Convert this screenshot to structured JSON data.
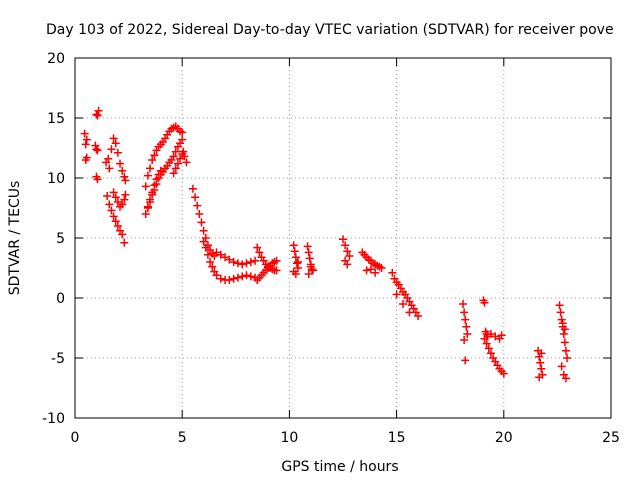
{
  "chart_data": {
    "type": "scatter",
    "title": "Day 103 of 2022, Sidereal Day-to-day VTEC variation (SDTVAR) for receiver pove",
    "xlabel": "GPS time / hours",
    "ylabel": "SDTVAR / TECUs",
    "xlim": [
      0,
      25
    ],
    "ylim": [
      -10,
      20
    ],
    "xticks": [
      0,
      5,
      10,
      15,
      20,
      25
    ],
    "yticks": [
      -10,
      -5,
      0,
      5,
      10,
      15,
      20
    ],
    "xtick_labels": [
      "0",
      "5",
      "10",
      "15",
      "20",
      "25"
    ],
    "ytick_labels": [
      "-10",
      "-5",
      "0",
      "5",
      "10",
      "15",
      "20"
    ],
    "grid": true,
    "marker": "+",
    "series": [
      {
        "name": "SDTVAR",
        "color": "#ff0000",
        "x": [
          0.45,
          0.5,
          0.5,
          0.55,
          0.55,
          0.95,
          1.0,
          1.0,
          1.05,
          1.05,
          1.1,
          1.0,
          1.05,
          1.45,
          1.55,
          1.6,
          1.7,
          1.8,
          1.9,
          2.0,
          2.1,
          2.2,
          2.3,
          2.35,
          1.5,
          1.6,
          1.7,
          1.8,
          1.9,
          2.0,
          2.1,
          2.2,
          2.3,
          1.8,
          1.9,
          2.0,
          2.1,
          2.2,
          2.3,
          2.35,
          3.3,
          3.4,
          3.5,
          3.6,
          3.7,
          3.8,
          3.9,
          4.0,
          4.1,
          4.2,
          4.3,
          4.4,
          4.5,
          4.6,
          4.7,
          4.8,
          4.9,
          5.0,
          3.4,
          3.5,
          3.6,
          3.7,
          3.8,
          3.9,
          4.0,
          4.1,
          4.2,
          4.3,
          4.4,
          4.5,
          4.6,
          4.7,
          4.8,
          4.9,
          5.0,
          3.3,
          3.4,
          3.5,
          3.6,
          3.7,
          3.8,
          3.9,
          4.0,
          4.6,
          4.7,
          4.8,
          4.9,
          5.0,
          5.05,
          5.1,
          5.2,
          5.5,
          5.6,
          5.7,
          5.8,
          5.9,
          6.0,
          6.1,
          6.2,
          6.3,
          6.4,
          6.5,
          6.0,
          6.1,
          6.2,
          6.3,
          6.4,
          6.5,
          6.6,
          6.8,
          7.0,
          7.2,
          7.4,
          7.6,
          7.8,
          8.0,
          8.2,
          8.4,
          6.6,
          6.8,
          7.0,
          7.2,
          7.4,
          7.6,
          7.8,
          8.0,
          8.2,
          8.4,
          8.5,
          8.6,
          8.7,
          8.8,
          8.9,
          9.0,
          9.1,
          9.2,
          9.3,
          9.4,
          8.5,
          8.6,
          8.7,
          8.8,
          8.9,
          9.0,
          9.1,
          9.2,
          9.3,
          9.4,
          10.2,
          10.25,
          10.3,
          10.35,
          10.4,
          10.2,
          10.3,
          10.4,
          10.85,
          10.9,
          10.95,
          11.0,
          11.05,
          11.1,
          10.9,
          11.0,
          12.5,
          12.6,
          12.7,
          12.8,
          12.6,
          12.7,
          13.4,
          13.5,
          13.6,
          13.7,
          13.8,
          13.9,
          14.0,
          14.1,
          14.2,
          14.3,
          13.6,
          13.8,
          14.0,
          14.8,
          14.9,
          15.0,
          15.1,
          15.2,
          15.3,
          15.4,
          15.5,
          15.6,
          15.7,
          15.8,
          15.9,
          16.0,
          15.0,
          15.3,
          15.6,
          18.1,
          18.15,
          18.2,
          18.25,
          18.3,
          18.15,
          18.2,
          19.05,
          19.1,
          19.15,
          19.2,
          19.25,
          19.1,
          19.2,
          19.3,
          19.4,
          19.5,
          19.6,
          19.7,
          19.8,
          19.9,
          20.0,
          19.4,
          19.6,
          19.8,
          19.9,
          21.6,
          21.65,
          21.7,
          21.75,
          21.8,
          21.65,
          21.75,
          22.6,
          22.65,
          22.7,
          22.75,
          22.8,
          22.85,
          22.9,
          22.95,
          22.7,
          22.8,
          22.9,
          22.75,
          22.85
        ],
        "y": [
          13.7,
          12.8,
          11.5,
          11.7,
          13.2,
          12.7,
          12.4,
          10.1,
          9.9,
          15.2,
          15.6,
          15.3,
          12.3,
          11.3,
          11.6,
          10.8,
          12.4,
          13.3,
          12.9,
          12.1,
          11.2,
          10.6,
          10.1,
          9.8,
          8.5,
          7.8,
          7.3,
          6.8,
          6.4,
          6.0,
          5.6,
          5.3,
          4.6,
          8.8,
          8.4,
          8.0,
          7.6,
          7.8,
          8.2,
          8.6,
          9.3,
          10.2,
          10.8,
          11.5,
          11.9,
          12.3,
          12.6,
          12.8,
          13.0,
          13.3,
          13.6,
          13.9,
          14.1,
          14.2,
          14.3,
          14.1,
          13.9,
          13.8,
          7.5,
          8.0,
          8.6,
          9.0,
          9.5,
          10.0,
          10.3,
          10.5,
          10.8,
          11.0,
          11.3,
          11.5,
          11.8,
          12.2,
          12.6,
          12.9,
          13.2,
          7.0,
          7.6,
          8.2,
          8.8,
          9.4,
          9.9,
          10.3,
          10.6,
          10.4,
          10.8,
          11.2,
          11.6,
          12.0,
          12.2,
          11.8,
          11.3,
          9.1,
          8.4,
          7.7,
          7.0,
          6.3,
          5.6,
          5.0,
          4.4,
          4.0,
          3.7,
          3.5,
          4.7,
          4.2,
          3.6,
          3.0,
          2.6,
          2.2,
          1.9,
          1.6,
          1.5,
          1.5,
          1.6,
          1.7,
          1.8,
          1.9,
          1.8,
          1.7,
          3.8,
          3.6,
          3.4,
          3.2,
          3.0,
          2.9,
          2.8,
          2.9,
          3.0,
          3.1,
          4.2,
          3.8,
          3.4,
          3.1,
          2.8,
          2.6,
          2.5,
          2.4,
          2.3,
          2.3,
          1.5,
          1.7,
          1.9,
          2.1,
          2.3,
          2.5,
          2.7,
          2.9,
          3.0,
          3.1,
          4.4,
          3.9,
          3.4,
          2.9,
          2.5,
          2.2,
          2.0,
          3.0,
          4.3,
          3.8,
          3.3,
          2.8,
          2.4,
          2.3,
          2.0,
          2.6,
          4.9,
          4.4,
          3.9,
          3.5,
          3.1,
          2.8,
          3.8,
          3.6,
          3.4,
          3.2,
          3.1,
          2.9,
          2.8,
          2.7,
          2.6,
          2.5,
          2.3,
          2.4,
          2.1,
          2.1,
          1.6,
          1.3,
          1.1,
          0.8,
          0.5,
          0.3,
          0.0,
          -0.3,
          -0.6,
          -0.9,
          -1.2,
          -1.5,
          0.3,
          -0.5,
          -1.2,
          -0.5,
          -1.2,
          -1.8,
          -2.4,
          -3.0,
          -3.5,
          -5.2,
          -0.2,
          -0.4,
          -2.8,
          -3.0,
          -3.2,
          -3.4,
          -3.8,
          -4.2,
          -4.6,
          -5.0,
          -5.3,
          -5.6,
          -5.9,
          -6.1,
          -6.3,
          -3.0,
          -3.2,
          -3.4,
          -3.1,
          -4.4,
          -4.9,
          -5.4,
          -5.9,
          -6.4,
          -6.6,
          -4.6,
          -0.6,
          -1.2,
          -1.8,
          -2.4,
          -3.0,
          -3.7,
          -4.4,
          -5.0,
          -5.7,
          -6.4,
          -6.7,
          -2.1,
          -2.6
        ]
      }
    ]
  }
}
